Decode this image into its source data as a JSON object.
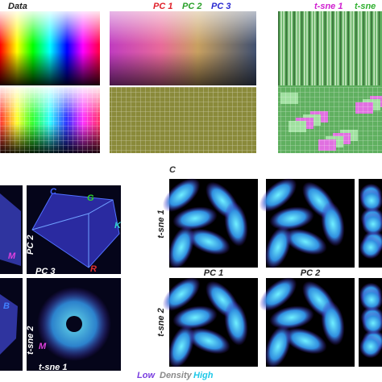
{
  "top_labels": [
    {
      "text": "Data",
      "color": "#222222"
    },
    {
      "text": "PC 1",
      "color": "#e0202a"
    },
    {
      "text": "PC 2",
      "color": "#2aa02a"
    },
    {
      "text": "PC 3",
      "color": "#2a2ad0"
    },
    {
      "text": "t-sne 1",
      "color": "#d020d0"
    },
    {
      "text": "t-sne",
      "color": "#30b030"
    }
  ],
  "left_panel_labels": [
    "C",
    "G",
    "K",
    "R",
    "B",
    "M",
    "M"
  ],
  "left_axis_labels": [
    "PC 2",
    "PC 3",
    "t-sne 2",
    "t-sne 1"
  ],
  "panel_c": {
    "letter": "C",
    "row_labels": [
      "t-sne 1",
      "t-sne 2"
    ],
    "column_labels": [
      "PC 1",
      "PC 2"
    ]
  },
  "legend": [
    {
      "text": "Low",
      "color": "#7a3ee0"
    },
    {
      "text": "Density",
      "color": "#8a8a8a"
    },
    {
      "text": "High",
      "color": "#20c8e8"
    }
  ]
}
